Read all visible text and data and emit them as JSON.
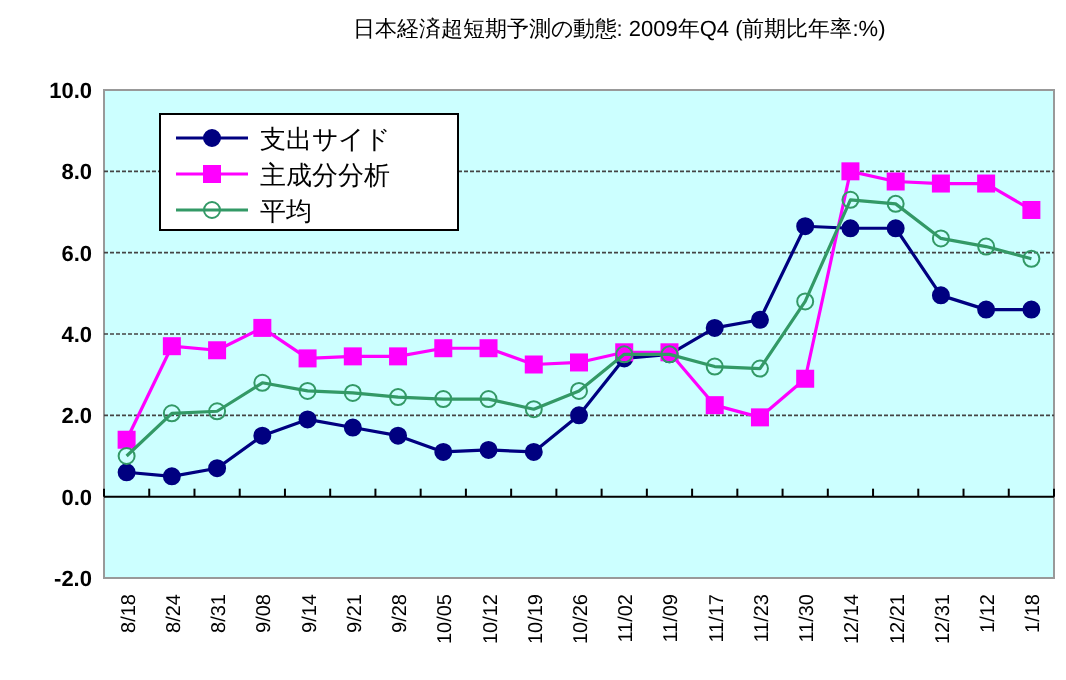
{
  "chart_data": {
    "type": "line",
    "title": "日本経済超短期予測の動態: 2009年Q4 (前期比年率:%)",
    "categories": [
      "8/18",
      "8/24",
      "8/31",
      "9/08",
      "9/14",
      "9/21",
      "9/28",
      "10/05",
      "10/12",
      "10/19",
      "10/26",
      "11/02",
      "11/09",
      "11/17",
      "11/23",
      "11/30",
      "12/14",
      "12/21",
      "12/31",
      "1/12",
      "1/18"
    ],
    "series": [
      {
        "name": "支出サイド",
        "color": "#000080",
        "marker": "circle",
        "values": [
          0.6,
          0.5,
          0.7,
          1.5,
          1.9,
          1.7,
          1.5,
          1.1,
          1.15,
          1.1,
          2.0,
          3.4,
          3.5,
          4.15,
          4.35,
          6.65,
          6.6,
          6.6,
          4.95,
          4.6,
          4.6
        ]
      },
      {
        "name": "主成分分析",
        "color": "#ff00ff",
        "marker": "square",
        "values": [
          1.4,
          3.7,
          3.6,
          4.15,
          3.4,
          3.45,
          3.45,
          3.65,
          3.65,
          3.25,
          3.3,
          3.55,
          3.55,
          2.25,
          1.95,
          2.9,
          8.0,
          7.75,
          7.7,
          7.7,
          7.05
        ]
      },
      {
        "name": "平均",
        "color": "#339966",
        "marker": "circle-open",
        "values": [
          1.0,
          2.05,
          2.1,
          2.8,
          2.6,
          2.55,
          2.45,
          2.4,
          2.4,
          2.15,
          2.6,
          3.5,
          3.5,
          3.2,
          3.15,
          4.8,
          7.3,
          7.2,
          6.35,
          6.15,
          5.85
        ]
      }
    ],
    "ylim": [
      -2,
      10
    ],
    "yticks": [
      {
        "value": -2,
        "label": "-2.0"
      },
      {
        "value": 0,
        "label": "0.0"
      },
      {
        "value": 2,
        "label": "2.0"
      },
      {
        "value": 4,
        "label": "4.0"
      },
      {
        "value": 6,
        "label": "6.0"
      },
      {
        "value": 8,
        "label": "8.0"
      },
      {
        "value": 10,
        "label": "10.0"
      }
    ],
    "grid": "y",
    "legend": "top left"
  }
}
